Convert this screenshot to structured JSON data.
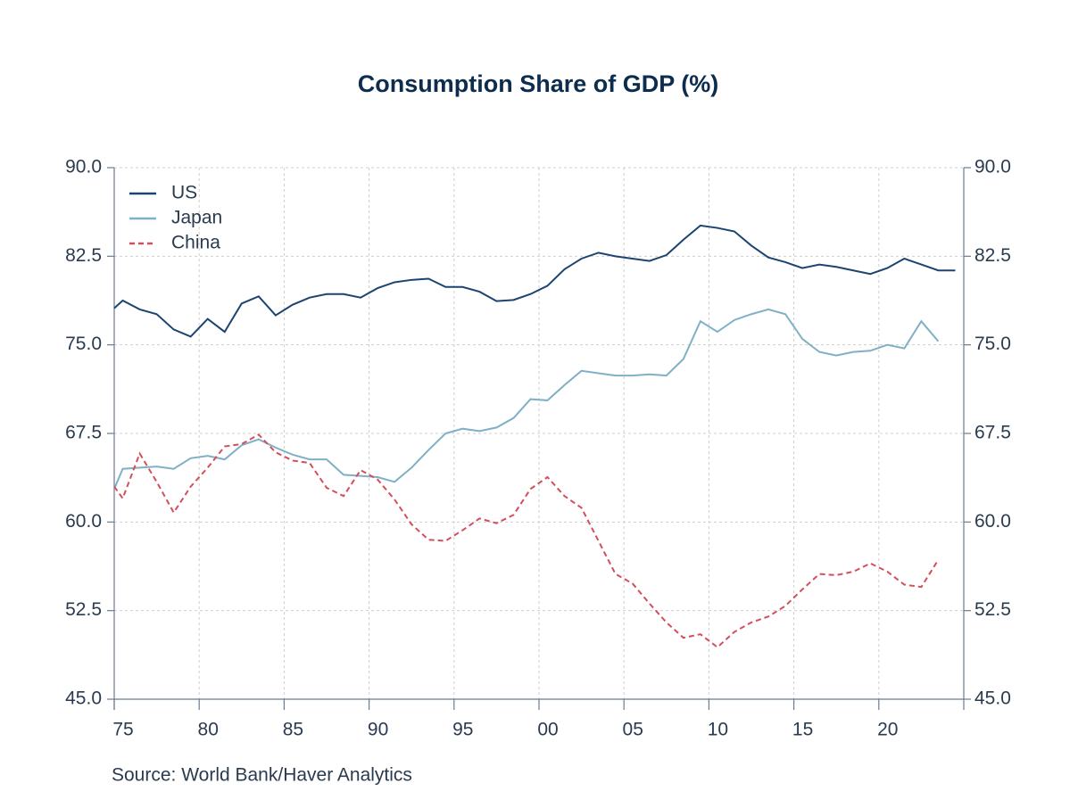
{
  "chart_data": {
    "type": "line",
    "title": "Consumption Share of GDP (%)",
    "source": "Source:  World Bank/Haver Analytics",
    "x": [
      1975,
      1975.5,
      1976.5,
      1977.5,
      1978.5,
      1979.5,
      1980.5,
      1981.5,
      1982.5,
      1983.5,
      1984.5,
      1985.5,
      1986.5,
      1987.5,
      1988.5,
      1989.5,
      1990.5,
      1991.5,
      1992.5,
      1993.5,
      1994.5,
      1995.5,
      1996.5,
      1997.5,
      1998.5,
      1999.5,
      2000.5,
      2001.5,
      2002.5,
      2003.5,
      2004.5,
      2005.5,
      2006.5,
      2007.5,
      2008.5,
      2009.5,
      2010.5,
      2011.5,
      2012.5,
      2013.5,
      2014.5,
      2015.5,
      2016.5,
      2017.5,
      2018.5,
      2019.5,
      2020.5,
      2021.5,
      2022.5,
      2023.5,
      2024.5
    ],
    "series": [
      {
        "name": "US",
        "color": "#1b4570",
        "dashed": false,
        "values": [
          78.1,
          78.75,
          78.0,
          77.6,
          76.3,
          75.7,
          77.2,
          76.1,
          78.5,
          79.1,
          77.5,
          78.4,
          79.0,
          79.3,
          79.3,
          79.0,
          79.8,
          80.3,
          80.5,
          80.6,
          79.9,
          79.9,
          79.5,
          78.7,
          78.8,
          79.3,
          80.0,
          81.4,
          82.3,
          82.8,
          82.5,
          82.3,
          82.1,
          82.6,
          83.9,
          85.1,
          84.9,
          84.6,
          83.4,
          82.4,
          82.0,
          81.5,
          81.8,
          81.6,
          81.3,
          81.0,
          81.5,
          82.3,
          81.8,
          81.3,
          81.3
        ]
      },
      {
        "name": "Japan",
        "color": "#7fb0c6",
        "dashed": false,
        "values": [
          62.8,
          64.5,
          64.6,
          64.7,
          64.5,
          65.4,
          65.6,
          65.3,
          66.5,
          67.0,
          66.3,
          65.7,
          65.3,
          65.3,
          64.0,
          63.9,
          63.8,
          63.4,
          64.6,
          66.1,
          67.5,
          67.9,
          67.7,
          68.0,
          68.8,
          70.4,
          70.3,
          71.6,
          72.8,
          72.6,
          72.4,
          72.4,
          72.5,
          72.4,
          73.8,
          77.0,
          76.1,
          77.1,
          77.6,
          78.0,
          77.6,
          75.5,
          74.4,
          74.1,
          74.4,
          74.5,
          75.0,
          74.7,
          77.0,
          75.3,
          null
        ]
      },
      {
        "name": "China",
        "color": "#d24f5c",
        "dashed": true,
        "values": [
          63.0,
          62.0,
          65.8,
          63.4,
          60.8,
          63.0,
          64.6,
          66.4,
          66.6,
          67.4,
          65.9,
          65.2,
          65.0,
          62.9,
          62.2,
          64.4,
          63.6,
          61.9,
          59.8,
          58.5,
          58.4,
          59.3,
          60.3,
          59.9,
          60.6,
          62.8,
          63.8,
          62.2,
          61.2,
          58.4,
          55.6,
          54.8,
          53.1,
          51.5,
          50.2,
          50.5,
          49.4,
          50.7,
          51.5,
          52.0,
          52.9,
          54.3,
          55.6,
          55.5,
          55.8,
          56.5,
          55.8,
          54.7,
          54.5,
          56.8,
          null
        ]
      }
    ],
    "xlim": [
      1975,
      2025
    ],
    "xticks": [
      {
        "value": 1975,
        "label": "75"
      },
      {
        "value": 1980,
        "label": "80"
      },
      {
        "value": 1985,
        "label": "85"
      },
      {
        "value": 1990,
        "label": "90"
      },
      {
        "value": 1995,
        "label": "95"
      },
      {
        "value": 2000,
        "label": "00"
      },
      {
        "value": 2005,
        "label": "05"
      },
      {
        "value": 2010,
        "label": "10"
      },
      {
        "value": 2015,
        "label": "15"
      },
      {
        "value": 2020,
        "label": "20"
      }
    ],
    "ylim": [
      45,
      90
    ],
    "yticks": [
      {
        "value": 45,
        "label": "45.0"
      },
      {
        "value": 52.5,
        "label": "52.5"
      },
      {
        "value": 60,
        "label": "60.0"
      },
      {
        "value": 67.5,
        "label": "67.5"
      },
      {
        "value": 75,
        "label": "75.0"
      },
      {
        "value": 82.5,
        "label": "82.5"
      },
      {
        "value": 90,
        "label": "90.0"
      }
    ],
    "y2lim": [
      45,
      90
    ],
    "y2ticks": [
      {
        "value": 45,
        "label": "45.0"
      },
      {
        "value": 52.5,
        "label": "52.5"
      },
      {
        "value": 60,
        "label": "60.0"
      },
      {
        "value": 67.5,
        "label": "67.5"
      },
      {
        "value": 75,
        "label": "75.0"
      },
      {
        "value": 82.5,
        "label": "82.5"
      },
      {
        "value": 90,
        "label": "90.0"
      }
    ],
    "grid": true,
    "legend": "upper left"
  }
}
